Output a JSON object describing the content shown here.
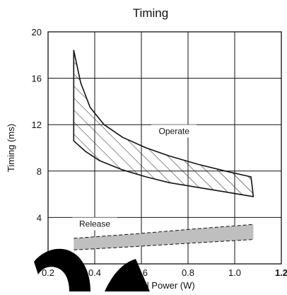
{
  "chart_data": {
    "type": "area",
    "title": "Timing",
    "xlabel": "Coil Power (W)",
    "ylabel": "Timing (ms)",
    "xlim": [
      0.2,
      1.2
    ],
    "ylim": [
      0,
      20
    ],
    "x_ticks": [
      {
        "value": 0.2,
        "label": "0.2"
      },
      {
        "value": 0.4,
        "label": "0.4"
      },
      {
        "value": 0.6,
        "label": "0.6"
      },
      {
        "value": 0.8,
        "label": "0.8"
      },
      {
        "value": 1.0,
        "label": "1.0"
      },
      {
        "value": 1.2,
        "label": "1.2"
      }
    ],
    "y_ticks": [
      {
        "value": 4,
        "label": "4"
      },
      {
        "value": 8,
        "label": "8"
      },
      {
        "value": 12,
        "label": "12"
      },
      {
        "value": 16,
        "label": "16"
      },
      {
        "value": 20,
        "label": "20"
      }
    ],
    "grid": true,
    "series": [
      {
        "name": "Operate",
        "style": "hatched band",
        "color": "#111111",
        "upper": [
          [
            0.31,
            18.4
          ],
          [
            0.34,
            15.6
          ],
          [
            0.38,
            13.5
          ],
          [
            0.44,
            12.0
          ],
          [
            0.52,
            10.9
          ],
          [
            0.62,
            10.0
          ],
          [
            0.72,
            9.3
          ],
          [
            0.84,
            8.6
          ],
          [
            0.96,
            8.0
          ],
          [
            1.07,
            7.5
          ]
        ],
        "lower": [
          [
            0.31,
            10.6
          ],
          [
            0.36,
            9.7
          ],
          [
            0.42,
            8.9
          ],
          [
            0.52,
            8.1
          ],
          [
            0.62,
            7.5
          ],
          [
            0.72,
            7.0
          ],
          [
            0.84,
            6.6
          ],
          [
            0.96,
            6.2
          ],
          [
            1.08,
            5.8
          ]
        ]
      },
      {
        "name": "Release",
        "style": "shaded band, dashed edges",
        "color": "#bfbfbf",
        "upper": [
          [
            0.31,
            2.2
          ],
          [
            0.58,
            2.6
          ],
          [
            0.82,
            3.0
          ],
          [
            1.08,
            3.4
          ]
        ],
        "lower": [
          [
            0.31,
            1.2
          ],
          [
            0.58,
            1.5
          ],
          [
            0.82,
            1.8
          ],
          [
            1.08,
            2.1
          ]
        ]
      }
    ],
    "annotations": [
      {
        "text": "Operate",
        "x": 0.74,
        "y": 11.2
      },
      {
        "text": "Release",
        "x": 0.4,
        "y": 3.2
      }
    ],
    "colors": {
      "axis": "#111111",
      "grid": "#111111",
      "hatch": "#111111",
      "release_fill": "#bfbfbf",
      "watermark": "#000000"
    },
    "watermark": {
      "text": "Q"
    }
  }
}
